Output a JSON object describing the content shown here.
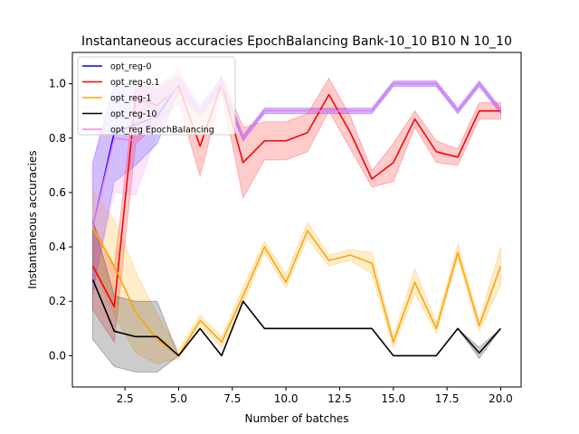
{
  "chart_data": {
    "type": "line",
    "title": "Instantaneous accuracies EpochBalancing Bank-10_10 B10 N 10_10",
    "xlabel": "Number of batches",
    "ylabel": "Instantaneous accuracies",
    "xlim": [
      0.05,
      20.95
    ],
    "ylim": [
      -0.115,
      1.115
    ],
    "xticks": [
      2.5,
      5.0,
      7.5,
      10.0,
      12.5,
      15.0,
      17.5,
      20.0
    ],
    "xtick_labels": [
      "2.5",
      "5.0",
      "7.5",
      "10.0",
      "12.5",
      "15.0",
      "17.5",
      "20.0"
    ],
    "yticks": [
      0.0,
      0.2,
      0.4,
      0.6,
      0.8,
      1.0
    ],
    "ytick_labels": [
      "0.0",
      "0.2",
      "0.4",
      "0.6",
      "0.8",
      "1.0"
    ],
    "grid": false,
    "legend_position": "top-left",
    "x": [
      1,
      2,
      3,
      4,
      5,
      6,
      7,
      8,
      9,
      10,
      11,
      12,
      13,
      14,
      15,
      16,
      17,
      18,
      19,
      20
    ],
    "series": [
      {
        "name": "opt_reg-0",
        "color": "#0000ff",
        "values": [
          0.47,
          0.82,
          0.85,
          0.88,
          1.0,
          0.9,
          1.0,
          0.8,
          0.9,
          0.9,
          0.9,
          0.9,
          0.9,
          0.9,
          1.0,
          1.0,
          1.0,
          0.9,
          1.0,
          0.9
        ],
        "lower": [
          0.23,
          0.64,
          0.7,
          0.78,
          0.97,
          0.88,
          0.98,
          0.79,
          0.89,
          0.89,
          0.89,
          0.89,
          0.89,
          0.89,
          0.99,
          0.99,
          0.99,
          0.89,
          0.99,
          0.89
        ],
        "upper": [
          0.71,
          1.0,
          1.0,
          0.98,
          1.03,
          0.92,
          1.02,
          0.81,
          0.91,
          0.91,
          0.91,
          0.91,
          0.91,
          0.91,
          1.01,
          1.01,
          1.01,
          0.91,
          1.01,
          0.91
        ]
      },
      {
        "name": "opt_reg-0.1",
        "color": "#ff0000",
        "values": [
          0.33,
          0.18,
          0.95,
          0.92,
          0.99,
          0.77,
          1.0,
          0.71,
          0.79,
          0.79,
          0.82,
          0.96,
          0.82,
          0.65,
          0.71,
          0.87,
          0.75,
          0.73,
          0.9,
          0.9
        ],
        "lower": [
          0.17,
          0.05,
          0.78,
          0.85,
          0.93,
          0.66,
          0.97,
          0.58,
          0.72,
          0.72,
          0.75,
          0.9,
          0.76,
          0.62,
          0.64,
          0.84,
          0.71,
          0.7,
          0.87,
          0.87
        ],
        "upper": [
          0.49,
          0.32,
          1.0,
          0.99,
          1.05,
          0.88,
          1.03,
          0.84,
          0.86,
          0.86,
          0.89,
          1.02,
          0.88,
          0.68,
          0.78,
          0.9,
          0.79,
          0.76,
          0.93,
          0.93
        ]
      },
      {
        "name": "opt_reg-1",
        "color": "#ffa500",
        "values": [
          0.47,
          0.33,
          0.16,
          0.06,
          0.0,
          0.13,
          0.05,
          0.22,
          0.4,
          0.27,
          0.46,
          0.35,
          0.37,
          0.34,
          0.05,
          0.27,
          0.1,
          0.38,
          0.11,
          0.33
        ],
        "lower": [
          0.33,
          0.15,
          0.01,
          -0.03,
          -0.01,
          0.11,
          0.03,
          0.19,
          0.38,
          0.25,
          0.43,
          0.33,
          0.35,
          0.3,
          0.03,
          0.23,
          0.08,
          0.36,
          0.09,
          0.26
        ],
        "upper": [
          0.61,
          0.5,
          0.31,
          0.15,
          0.02,
          0.15,
          0.07,
          0.25,
          0.42,
          0.3,
          0.49,
          0.37,
          0.39,
          0.38,
          0.07,
          0.32,
          0.12,
          0.41,
          0.13,
          0.4
        ]
      },
      {
        "name": "opt_reg-10",
        "color": "#000000",
        "values": [
          0.28,
          0.09,
          0.07,
          0.07,
          0.0,
          0.1,
          0.0,
          0.2,
          0.1,
          0.1,
          0.1,
          0.1,
          0.1,
          0.1,
          0.0,
          0.0,
          0.0,
          0.1,
          0.01,
          0.1
        ],
        "lower": [
          0.06,
          -0.04,
          -0.06,
          -0.06,
          0.0,
          0.1,
          0.0,
          0.2,
          0.1,
          0.1,
          0.1,
          0.1,
          0.1,
          0.1,
          0.0,
          0.0,
          0.0,
          0.1,
          -0.01,
          0.1
        ],
        "upper": [
          0.5,
          0.22,
          0.2,
          0.2,
          0.0,
          0.1,
          0.0,
          0.2,
          0.1,
          0.1,
          0.1,
          0.1,
          0.1,
          0.1,
          0.0,
          0.0,
          0.0,
          0.1,
          0.03,
          0.1
        ]
      },
      {
        "name": "opt_reg EpochBalancing",
        "color": "#ee82ee",
        "values": [
          0.47,
          0.8,
          0.79,
          0.9,
          1.0,
          0.9,
          1.0,
          0.8,
          0.9,
          0.9,
          0.9,
          0.9,
          0.9,
          0.9,
          1.0,
          1.0,
          1.0,
          0.9,
          1.0,
          0.9
        ],
        "lower": [
          0.23,
          0.6,
          0.59,
          0.82,
          0.97,
          0.88,
          0.98,
          0.79,
          0.89,
          0.89,
          0.89,
          0.89,
          0.89,
          0.89,
          0.99,
          0.99,
          0.99,
          0.89,
          0.99,
          0.89
        ],
        "upper": [
          0.71,
          1.0,
          0.99,
          0.98,
          1.03,
          0.92,
          1.02,
          0.81,
          0.91,
          0.91,
          0.91,
          0.91,
          0.91,
          0.91,
          1.01,
          1.01,
          1.01,
          0.91,
          1.01,
          0.91
        ]
      }
    ]
  }
}
